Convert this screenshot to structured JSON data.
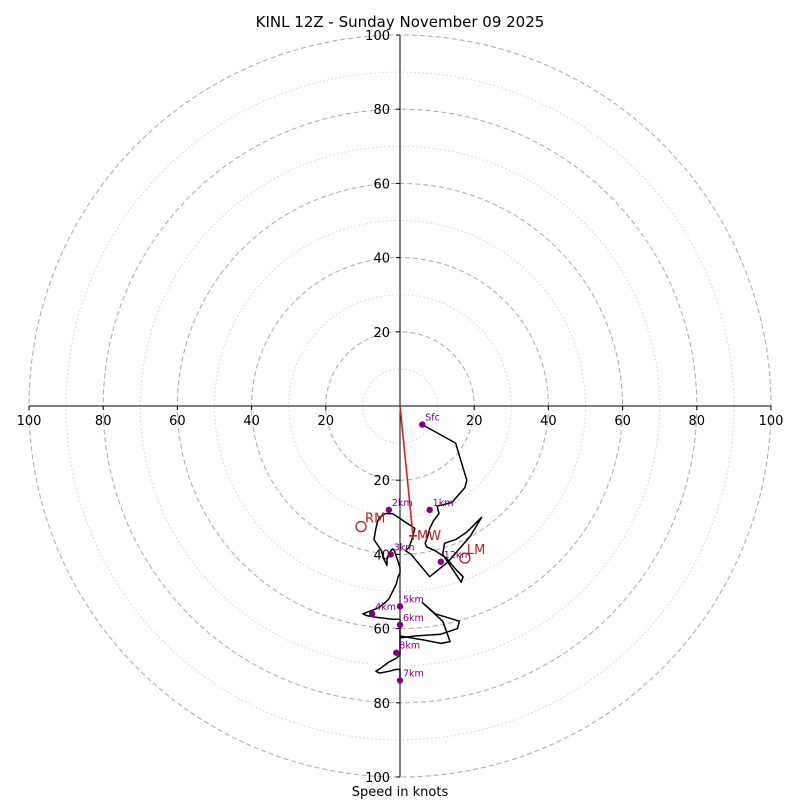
{
  "chart_data": {
    "type": "hodograph",
    "title": "KINL 12Z - Sunday November 09 2025",
    "xlabel": "Speed in knots",
    "rings": [
      10,
      20,
      30,
      40,
      50,
      60,
      70,
      80,
      90,
      100
    ],
    "tick_values": [
      20,
      40,
      60,
      80,
      100
    ],
    "tick_labels": [
      "20",
      "40",
      "60",
      "80",
      "100"
    ],
    "axis_range": [
      -100,
      100
    ],
    "colors": {
      "trace": "#000000",
      "height_marker": "#800080",
      "motion": "#b22222",
      "shear_vector": "#e02020",
      "grid": "#bdbdbd"
    },
    "trace": [
      [
        6,
        -5
      ],
      [
        15,
        -10
      ],
      [
        18,
        -20
      ],
      [
        17.5,
        -22
      ],
      [
        14,
        -26
      ],
      [
        10,
        -27
      ],
      [
        10.5,
        -29
      ],
      [
        9,
        -31
      ],
      [
        8,
        -33
      ],
      [
        7.5,
        -35
      ],
      [
        6.8,
        -37
      ],
      [
        7.2,
        -38
      ],
      [
        9.5,
        -39
      ],
      [
        12.5,
        -41
      ],
      [
        15,
        -44
      ],
      [
        17,
        -46
      ],
      [
        16.5,
        -47.5
      ],
      [
        13.5,
        -43
      ],
      [
        11.5,
        -40
      ],
      [
        12,
        -37
      ],
      [
        15,
        -36
      ],
      [
        18,
        -34
      ],
      [
        22,
        -30
      ],
      [
        19,
        -35
      ],
      [
        13,
        -42
      ],
      [
        8,
        -46
      ],
      [
        3,
        -40
      ],
      [
        1.5,
        -39
      ],
      [
        2.5,
        -38
      ],
      [
        3.5,
        -35
      ],
      [
        4,
        -33
      ],
      [
        1,
        -31
      ],
      [
        -2,
        -29
      ],
      [
        -3,
        -29
      ],
      [
        -4,
        -29
      ],
      [
        -5.5,
        -30
      ],
      [
        -6,
        -31
      ],
      [
        -6.5,
        -33
      ],
      [
        -7,
        -36
      ],
      [
        -5,
        -39
      ],
      [
        -4.5,
        -41
      ],
      [
        -4,
        -42
      ],
      [
        -3.5,
        -43
      ],
      [
        -3.5,
        -41
      ],
      [
        -3,
        -40
      ],
      [
        -2.5,
        -39
      ],
      [
        -2,
        -38.5
      ],
      [
        -1.5,
        -39
      ],
      [
        -1,
        -40.5
      ],
      [
        -0.5,
        -42
      ],
      [
        0,
        -43.5
      ],
      [
        0,
        -45
      ],
      [
        -0.5,
        -46
      ],
      [
        -1,
        -48
      ],
      [
        -2,
        -50
      ],
      [
        -2.5,
        -51
      ],
      [
        -3,
        -52
      ],
      [
        -4,
        -53
      ],
      [
        -6,
        -54.5
      ],
      [
        -10,
        -56
      ],
      [
        -9,
        -56.5
      ],
      [
        -6,
        -57
      ],
      [
        -2,
        -57.5
      ],
      [
        0,
        -57.5
      ],
      [
        0,
        -59
      ],
      [
        0,
        -61
      ],
      [
        0,
        -63
      ],
      [
        0,
        -65
      ],
      [
        0,
        -67
      ],
      [
        -1,
        -68
      ],
      [
        -3,
        -69
      ],
      [
        -5,
        -70.5
      ],
      [
        -6.5,
        -71.5
      ],
      [
        -5.5,
        -72
      ],
      [
        -3,
        -71.5
      ],
      [
        -1,
        -71
      ],
      [
        0,
        -71
      ],
      [
        0,
        -73
      ],
      [
        0,
        -74
      ]
    ],
    "trace_extra": [
      [
        0,
        -62
      ],
      [
        6,
        -63
      ],
      [
        11,
        -64
      ],
      [
        13.5,
        -63.5
      ],
      [
        11.5,
        -58
      ],
      [
        6,
        -53
      ],
      [
        9.5,
        -56
      ],
      [
        16,
        -58
      ],
      [
        15.5,
        -60
      ],
      [
        11,
        -61.5
      ],
      [
        4,
        -62
      ],
      [
        0,
        -62.5
      ]
    ],
    "height_markers": [
      {
        "label": "Sfc",
        "u": 6,
        "v": -5
      },
      {
        "label": "1km",
        "u": 8,
        "v": -28
      },
      {
        "label": "2km",
        "u": -3,
        "v": -28
      },
      {
        "label": "3km",
        "u": -2.5,
        "v": -40
      },
      {
        "label": "4km",
        "u": -7.5,
        "v": -56
      },
      {
        "label": "5km",
        "u": 0,
        "v": -54
      },
      {
        "label": "6km",
        "u": 0,
        "v": -59
      },
      {
        "label": "7km",
        "u": 0,
        "v": -74
      },
      {
        "label": "8km",
        "u": -1,
        "v": -66.5
      },
      {
        "label": "12km",
        "u": 11,
        "v": -42
      }
    ],
    "storm_motion": [
      {
        "label": "RM",
        "u": -10.5,
        "v": -32.5
      },
      {
        "label": "MW",
        "u": 3.5,
        "v": -35
      },
      {
        "label": "LM",
        "u": 17.5,
        "v": -41
      }
    ],
    "shear_vector": {
      "from": [
        0,
        0
      ],
      "to": [
        3.5,
        -35
      ]
    }
  }
}
